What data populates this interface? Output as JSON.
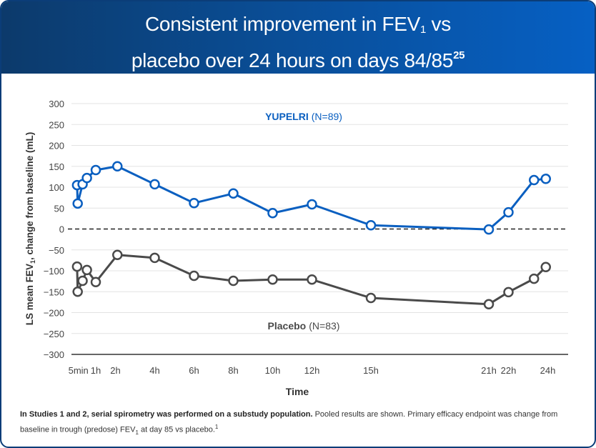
{
  "header": {
    "title_line1_a": "Consistent improvement in FEV",
    "title_line1_sub": "1",
    "title_line1_b": " vs",
    "title_line2": "placebo over 24 hours on days 84/85",
    "title_line2_sup": "25"
  },
  "colors": {
    "yupelri": "#0a5fc0",
    "placebo": "#4a4a4a",
    "banner": "#0a4d95"
  },
  "chart_data": {
    "type": "line",
    "xlabel": "Time",
    "ylabel_a": "LS mean FEV",
    "ylabel_sub": "1",
    "ylabel_b": ", change from baseline (mL)",
    "ylim": [
      -300,
      300
    ],
    "yticks": [
      "300",
      "250",
      "200",
      "150",
      "100",
      "50",
      "0",
      "−50",
      "−100",
      "−150",
      "−200",
      "−250",
      "−300"
    ],
    "xticks": [
      {
        "label": "5min",
        "x": 0.08
      },
      {
        "label": "1h",
        "x": 1
      },
      {
        "label": "2h",
        "x": 2
      },
      {
        "label": "4h",
        "x": 4
      },
      {
        "label": "6h",
        "x": 6
      },
      {
        "label": "8h",
        "x": 8
      },
      {
        "label": "10h",
        "x": 10
      },
      {
        "label": "12h",
        "x": 12
      },
      {
        "label": "15h",
        "x": 15
      },
      {
        "label": "21h",
        "x": 21
      },
      {
        "label": "22h",
        "x": 22
      },
      {
        "label": "24h",
        "x": 24
      }
    ],
    "grid": true,
    "reference_line": 0,
    "x": [
      0.05,
      0.08,
      0.33,
      0.55,
      1.0,
      2.1,
      4,
      6,
      8,
      10,
      12,
      15,
      21,
      22,
      23.3,
      23.9
    ],
    "series": [
      {
        "name": "YUPELRI",
        "n_label": "(N=89)",
        "values": [
          105,
          61,
          107,
          122,
          141,
          150,
          107,
          62,
          85,
          38,
          59,
          9,
          -1,
          40,
          117,
          120
        ]
      },
      {
        "name": "Placebo",
        "n_label": "(N=83)",
        "values": [
          -90,
          -150,
          -124,
          -98,
          -127,
          -62,
          -69,
          -112,
          -124,
          -121,
          -121,
          -165,
          -180,
          -151,
          -119,
          -91
        ]
      }
    ]
  },
  "footnote": {
    "bold": "In Studies 1 and 2, serial spirometry was performed on a substudy population.",
    "text_a": " Pooled results are shown. Primary efficacy endpoint was change from baseline in trough (predose) FEV",
    "sub": "1",
    "text_b": " at day 85 vs placebo.",
    "sup": "1"
  }
}
